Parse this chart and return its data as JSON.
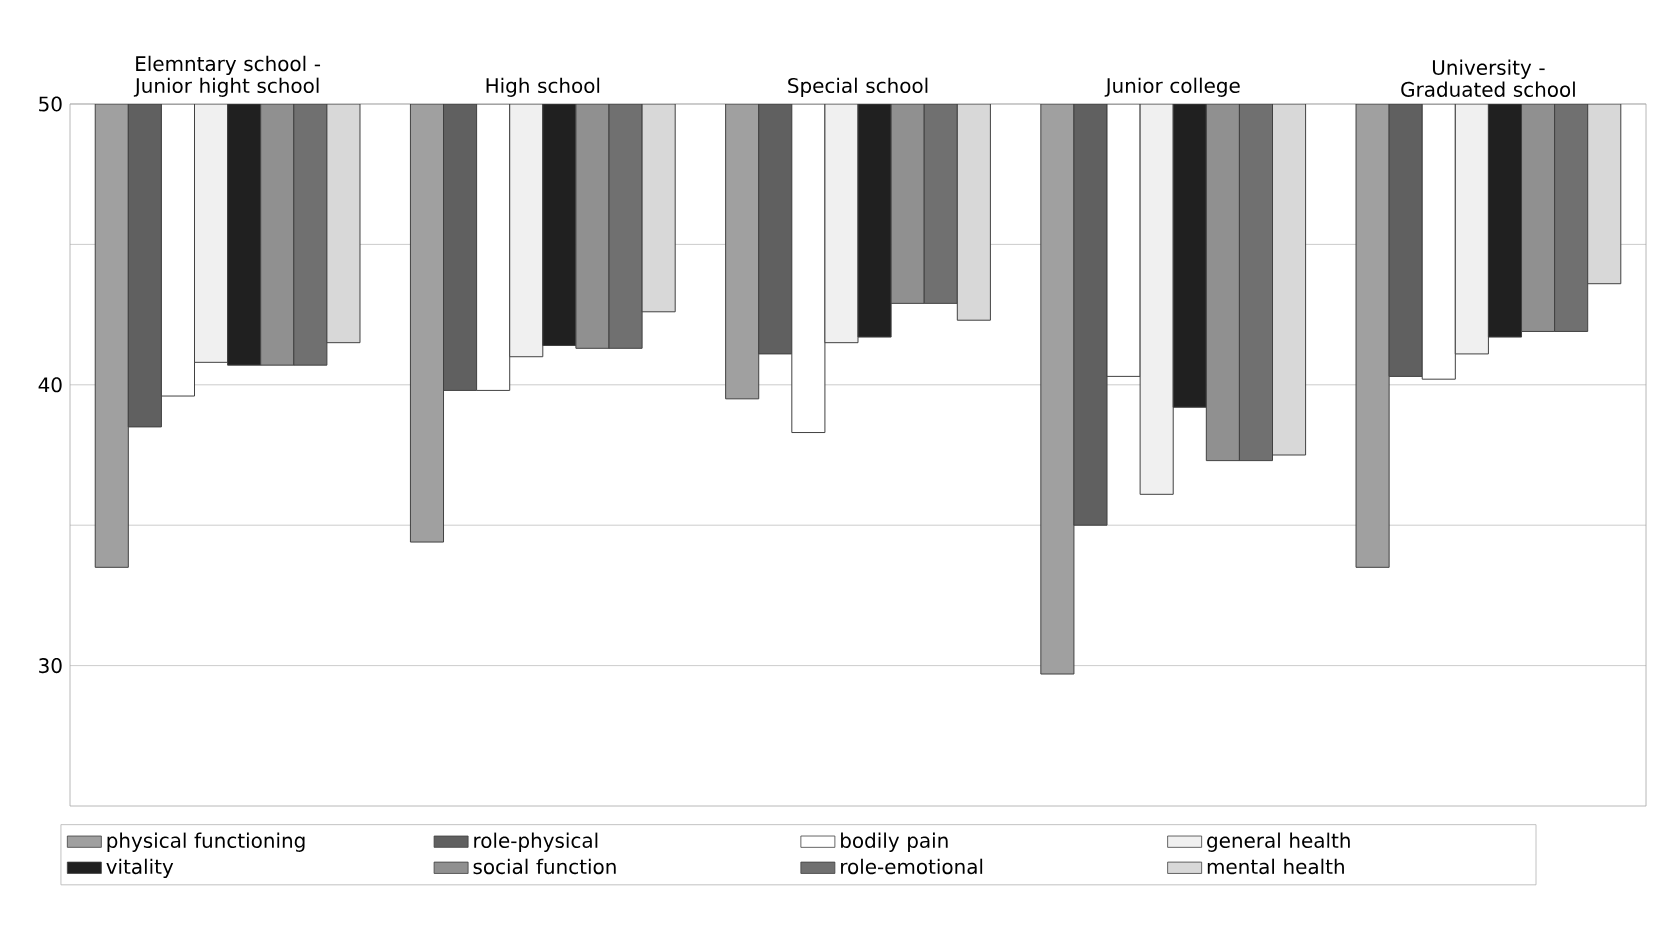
{
  "chart_data": {
    "type": "bar",
    "categories": [
      "Elemntary school - Junior hight school",
      "High school",
      "Special school",
      "Junior college",
      "University - Graduated school"
    ],
    "series": [
      {
        "name": "physical functioning",
        "color": "#a0a0a0",
        "base": [
          50,
          50,
          50,
          50,
          50
        ],
        "values": [
          -16.5,
          -15.6,
          -10.5,
          -20.3,
          -16.5
        ]
      },
      {
        "name": "role-physical",
        "color": "#606060",
        "base": [
          50,
          50,
          50,
          50,
          50
        ],
        "values": [
          -11.5,
          -10.2,
          -8.9,
          -15.0,
          -9.7
        ]
      },
      {
        "name": "bodily pain",
        "color": "#ffffff",
        "base": [
          50,
          50,
          50,
          50,
          50
        ],
        "values": [
          -10.4,
          -10.2,
          -11.7,
          -9.7,
          -9.8
        ]
      },
      {
        "name": "general health",
        "color": "#f0f0f0",
        "base": [
          50,
          50,
          50,
          50,
          50
        ],
        "values": [
          -9.2,
          -9.0,
          -8.5,
          -13.9,
          -8.9
        ]
      },
      {
        "name": "vitality",
        "color": "#202020",
        "base": [
          50,
          50,
          50,
          50,
          50
        ],
        "values": [
          -9.3,
          -8.6,
          -8.3,
          -10.8,
          -8.3
        ]
      },
      {
        "name": "social function",
        "color": "#909090",
        "base": [
          50,
          50,
          50,
          50,
          50
        ],
        "values": [
          -9.3,
          -8.7,
          -7.1,
          -12.7,
          -8.1
        ]
      },
      {
        "name": "role-emotional",
        "color": "#707070",
        "base": [
          50,
          50,
          50,
          50,
          50
        ],
        "values": [
          -9.3,
          -8.7,
          -7.1,
          -12.7,
          -8.1
        ]
      },
      {
        "name": "mental health",
        "color": "#d8d8d8",
        "base": [
          50,
          50,
          50,
          50,
          50
        ],
        "values": [
          -8.5,
          -7.4,
          -7.7,
          -12.5,
          -6.4
        ]
      }
    ],
    "ylim": [
      25,
      50
    ],
    "yticks": [
      30,
      {
        "value": 35,
        "label": null
      },
      40,
      {
        "value": 45,
        "label": null
      },
      50
    ],
    "grid": "y",
    "legend": "bottom"
  }
}
